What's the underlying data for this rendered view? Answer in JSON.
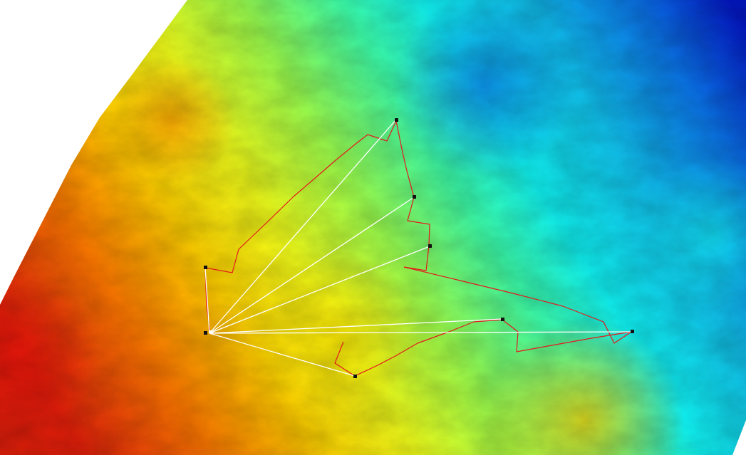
{
  "map": {
    "type": "elevation-raster",
    "colormap": [
      "#e01e0a",
      "#ff7a00",
      "#ffd200",
      "#f2ff1a",
      "#9cff4d",
      "#3dffaa",
      "#10f2f2",
      "#10c2ee",
      "#0a73e8",
      "#0318c8"
    ],
    "background_color": "#ffffff",
    "route_color": "#e31a1c",
    "connection_color": "#ffffff",
    "point_color": "#111111",
    "hub_station": "S1",
    "stations": [
      {
        "id": "S1"
      },
      {
        "id": "S2"
      },
      {
        "id": "S3"
      },
      {
        "id": "S4"
      },
      {
        "id": "S5"
      },
      {
        "id": "S6"
      },
      {
        "id": "S7"
      },
      {
        "id": "S8"
      }
    ]
  }
}
